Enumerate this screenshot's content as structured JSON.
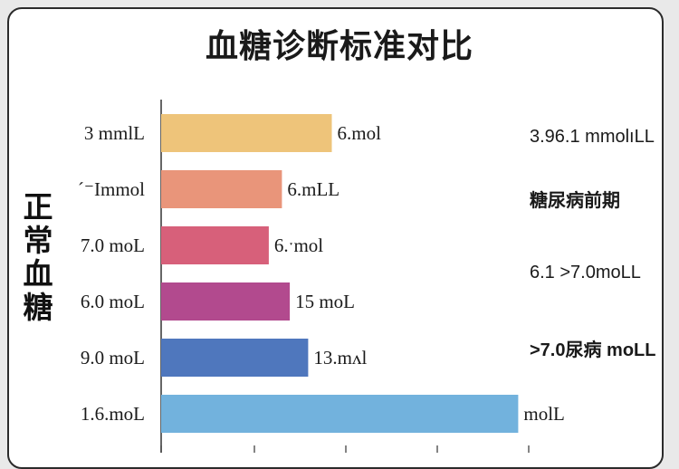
{
  "chart_data": {
    "type": "bar",
    "orientation": "horizontal",
    "title": "血糖诊断标准对比",
    "ylabel": "正常血糖",
    "categories": [
      "3 mmlL",
      "´⁻Immol",
      "7.0 moL",
      "6.0 moL",
      "9.0 moL",
      "1.6.moL"
    ],
    "values": [
      6.5,
      4.6,
      4.1,
      4.9,
      5.6,
      13.6
    ],
    "value_labels": [
      "6.mol",
      "6.mLL",
      "6.ˑmol",
      "15 moL",
      "13.mᴧl",
      "molL"
    ],
    "colors": [
      "#eec47a",
      "#e9957a",
      "#d7607a",
      "#b24a8e",
      "#4f77bd",
      "#72b2dd"
    ],
    "xlim": [
      0,
      14
    ],
    "right_annotations": [
      {
        "text": "3.96.1 mmolıLL",
        "bold": false
      },
      {
        "text": "糖尿病前期",
        "bold": true
      },
      {
        "text": "6.1 >7.0moLL",
        "bold": false
      },
      {
        "text": ">7.0尿病 moLL",
        "bold": true
      }
    ]
  }
}
